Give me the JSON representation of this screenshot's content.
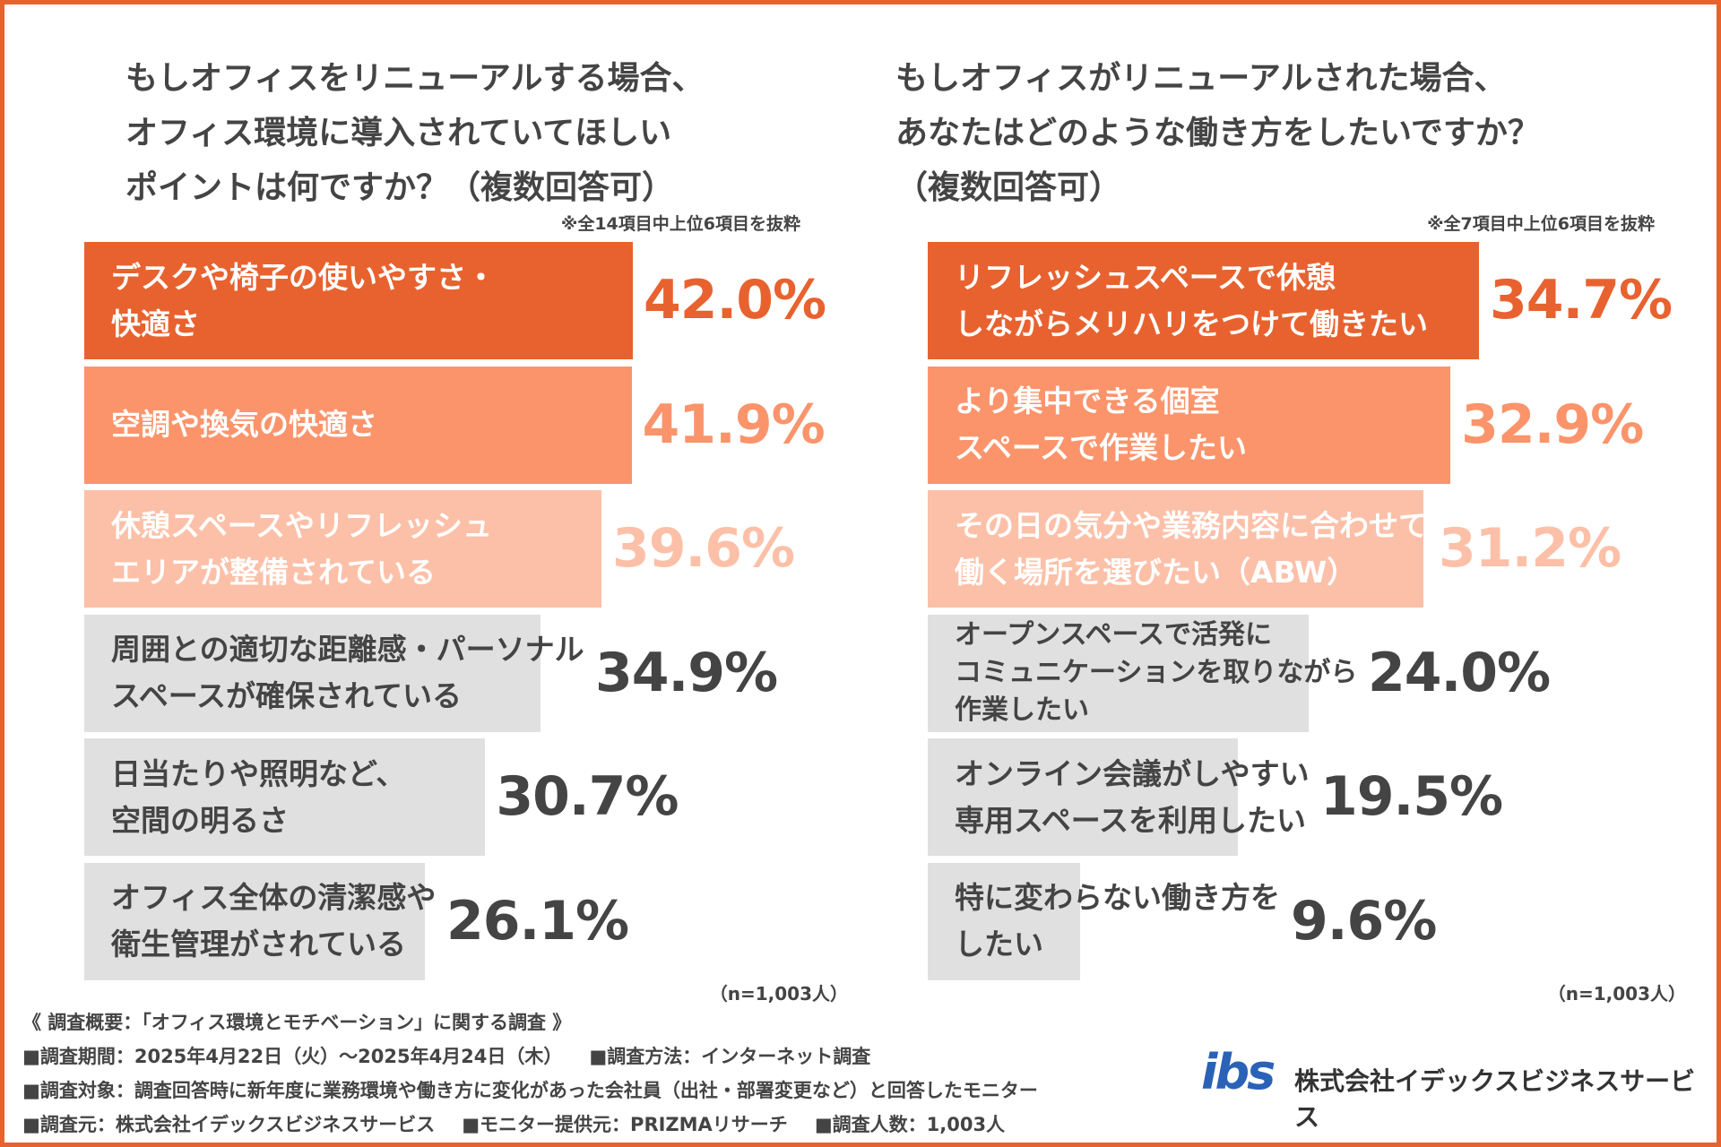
{
  "chart_data": [
    {
      "type": "bar",
      "orientation": "horizontal",
      "title": "もしオフィスをリニューアルする場合、\nオフィス環境に導入されていてほしい\nポイントは何ですか？（複数回答可）",
      "note": "※全14項目中上位6項目を抜粋",
      "sample": "（n=1,003人）",
      "categories": [
        "デスクや椅子の使いやすさ・\n快適さ",
        "空調や換気の快適さ",
        "休憩スペースやリフレッシュ\nエリアが整備されている",
        "周囲との適切な距離感・パーソナル\nスペースが確保されている",
        "日当たりや照明など、\n空間の明るさ",
        "オフィス全体の清潔感や\n衛生管理がされている"
      ],
      "values": [
        42.0,
        41.9,
        39.6,
        34.9,
        30.7,
        26.1
      ],
      "value_labels": [
        "42.0%",
        "41.9%",
        "39.6%",
        "34.9%",
        "30.7%",
        "26.1%"
      ],
      "colors": [
        "#e8622f",
        "#fb946b",
        "#fcc0a8",
        "#e0e0e0",
        "#e0e0e0",
        "#e0e0e0"
      ]
    },
    {
      "type": "bar",
      "orientation": "horizontal",
      "title": "もしオフィスがリニューアルされた場合、\nあなたはどのような働き方をしたいですか？\n（複数回答可）",
      "note": "※全7項目中上位6項目を抜粋",
      "sample": "（n=1,003人）",
      "categories": [
        "リフレッシュスペースで休憩\nしながらメリハリをつけて働きたい",
        "より集中できる個室\nスペースで作業したい",
        "その日の気分や業務内容に合わせて\n働く場所を選びたい（ABW）",
        "オープンスペースで活発に\nコミュニケーションを取りながら\n作業したい",
        "オンライン会議がしやすい\n専用スペースを利用したい",
        "特に変わらない働き方を\nしたい"
      ],
      "values": [
        34.7,
        32.9,
        31.2,
        24.0,
        19.5,
        9.6
      ],
      "value_labels": [
        "34.7%",
        "32.9%",
        "31.2%",
        "24.0%",
        "19.5%",
        "9.6%"
      ],
      "colors": [
        "#e8622f",
        "#fb946b",
        "#fcc0a8",
        "#e0e0e0",
        "#e0e0e0",
        "#e0e0e0"
      ]
    }
  ],
  "footer": [
    [
      "《 調査概要：「オフィス環境とモチベーション」に関する調査 》"
    ],
    [
      "■調査期間：2025年4月22日（火）～2025年4月24日（木）",
      "■調査方法：インターネット調査"
    ],
    [
      "■調査対象：調査回答時に新年度に業務環境や働き方に変化があった会社員（出社・部署変更など）と回答したモニター"
    ],
    [
      "■調査元：株式会社イデックスビジネスサービス",
      "■モニター提供元：PRIZMAリサーチ",
      "■調査人数：1,003人"
    ]
  ],
  "logo": {
    "mark": "ibs",
    "company": "株式会社イデックスビジネスサービス"
  }
}
